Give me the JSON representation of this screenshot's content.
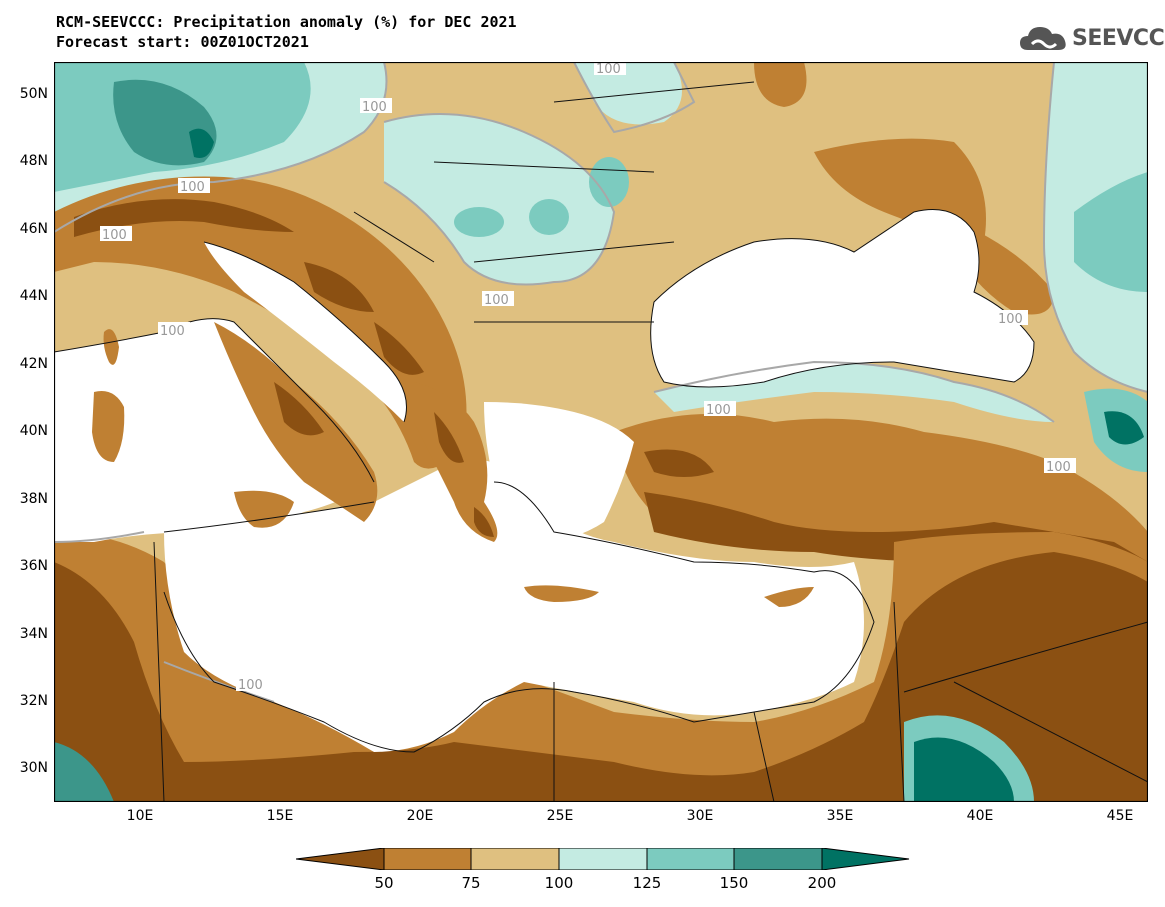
{
  "title": {
    "line1": "RCM-SEEVCCC: Precipitation anomaly (%) for DEC 2021",
    "line2": "Forecast start: 00Z01OCT2021"
  },
  "logo": {
    "text": "SEEVCCC",
    "icon": "cloud-icon"
  },
  "axes": {
    "lat_labels": [
      "50N",
      "48N",
      "46N",
      "44N",
      "42N",
      "40N",
      "38N",
      "36N",
      "34N",
      "32N",
      "30N"
    ],
    "lon_labels": [
      "10E",
      "15E",
      "20E",
      "25E",
      "30E",
      "35E",
      "40E",
      "45E"
    ]
  },
  "contour_label": "100",
  "colorbar": {
    "labels": [
      "50",
      "75",
      "100",
      "125",
      "150",
      "200"
    ],
    "colors": [
      "#8b5012",
      "#bf8033",
      "#dfc080",
      "#c4ebe2",
      "#7ccbbf",
      "#3c968a",
      "#007263"
    ]
  },
  "colors": {
    "land_low": "#8b5012",
    "land_mid": "#bf8033",
    "land_near": "#dfc080",
    "wet_light": "#c4ebe2",
    "wet_mid": "#7ccbbf",
    "wet_dark": "#3c968a",
    "wet_max": "#007263"
  }
}
